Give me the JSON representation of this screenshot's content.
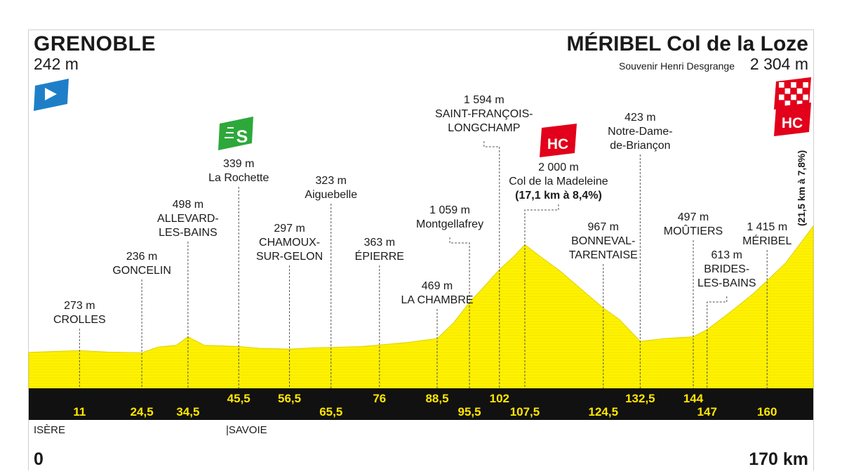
{
  "start": {
    "name": "GRENOBLE",
    "altitude": "242 m"
  },
  "finish": {
    "name": "MÉRIBEL Col de la Loze",
    "subtitle": "Souvenir Henri Desgrange",
    "altitude": "2 304 m"
  },
  "final_climb_note": "(21,5 km à 7,8%)",
  "badges": {
    "sprint": "S",
    "hc": "HC"
  },
  "regions": {
    "isere": "ISÈRE",
    "savoie": "|SAVOIE"
  },
  "distance": {
    "start": "0",
    "end": "170 km"
  },
  "colors": {
    "profile": "#fff200",
    "profile_stroke": "#e0d000",
    "band": "#111111",
    "km_text": "#ffe600",
    "sprint": "#2ea83a",
    "hc": "#e2001a",
    "start_flag": "#1e7fc8"
  },
  "chart_data": {
    "type": "area",
    "x_unit": "km",
    "y_unit": "m",
    "xlim": [
      0,
      170
    ],
    "profile": [
      [
        0,
        242
      ],
      [
        7,
        262
      ],
      [
        11,
        273
      ],
      [
        17,
        248
      ],
      [
        24.5,
        236
      ],
      [
        28,
        330
      ],
      [
        32,
        360
      ],
      [
        34.5,
        498
      ],
      [
        38,
        360
      ],
      [
        45.5,
        339
      ],
      [
        50,
        310
      ],
      [
        56.5,
        297
      ],
      [
        62,
        318
      ],
      [
        65.5,
        323
      ],
      [
        72,
        338
      ],
      [
        76,
        363
      ],
      [
        82,
        405
      ],
      [
        88.5,
        469
      ],
      [
        92,
        720
      ],
      [
        95.5,
        1059
      ],
      [
        98,
        1260
      ],
      [
        102,
        1594
      ],
      [
        105,
        1800
      ],
      [
        107.5,
        2000
      ],
      [
        111,
        1800
      ],
      [
        115,
        1580
      ],
      [
        119,
        1320
      ],
      [
        124.5,
        967
      ],
      [
        128,
        780
      ],
      [
        132.5,
        423
      ],
      [
        138,
        470
      ],
      [
        144,
        497
      ],
      [
        147,
        613
      ],
      [
        152,
        900
      ],
      [
        157,
        1200
      ],
      [
        160,
        1415
      ],
      [
        164,
        1700
      ],
      [
        168,
        2100
      ],
      [
        170,
        2304
      ]
    ],
    "points": [
      {
        "km": "11",
        "alt": "273 m",
        "name": [
          "CROLLES"
        ],
        "type": "town"
      },
      {
        "km": "24,5",
        "alt": "236 m",
        "name": [
          "GONCELIN"
        ],
        "type": "town"
      },
      {
        "km": "34,5",
        "alt": "498 m",
        "name": [
          "ALLEVARD-",
          "LES-BAINS"
        ],
        "type": "town"
      },
      {
        "km": "45,5",
        "alt": "339 m",
        "name": [
          "La Rochette"
        ],
        "type": "sprint"
      },
      {
        "km": "56,5",
        "alt": "297 m",
        "name": [
          "CHAMOUX-",
          "SUR-GELON"
        ],
        "type": "town"
      },
      {
        "km": "65,5",
        "alt": "323 m",
        "name": [
          "Aiguebelle"
        ],
        "type": "place"
      },
      {
        "km": "76",
        "alt": "363 m",
        "name": [
          "ÉPIERRE"
        ],
        "type": "town"
      },
      {
        "km": "88,5",
        "alt": "469 m",
        "name": [
          "LA CHAMBRE"
        ],
        "type": "town"
      },
      {
        "km": "95,5",
        "alt": "1 059 m",
        "name": [
          "Montgellafrey"
        ],
        "type": "place"
      },
      {
        "km": "102",
        "alt": "1 594 m",
        "name": [
          "SAINT-FRANÇOIS-",
          "LONGCHAMP"
        ],
        "type": "town"
      },
      {
        "km": "107,5",
        "alt": "2 000 m",
        "name": [
          "Col de la Madeleine",
          "(17,1 km à 8,4%)"
        ],
        "type": "climb_hc"
      },
      {
        "km": "124,5",
        "alt": "967 m",
        "name": [
          "BONNEVAL-",
          "TARENTAISE"
        ],
        "type": "town"
      },
      {
        "km": "132,5",
        "alt": "423 m",
        "name": [
          "Notre-Dame-",
          "de-Briançon"
        ],
        "type": "place"
      },
      {
        "km": "144",
        "alt": "497 m",
        "name": [
          "MOÛTIERS"
        ],
        "type": "town"
      },
      {
        "km": "147",
        "alt": "613 m",
        "name": [
          "BRIDES-",
          "LES-BAINS"
        ],
        "type": "town"
      },
      {
        "km": "160",
        "alt": "1 415 m",
        "name": [
          "MÉRIBEL"
        ],
        "type": "town"
      }
    ]
  }
}
